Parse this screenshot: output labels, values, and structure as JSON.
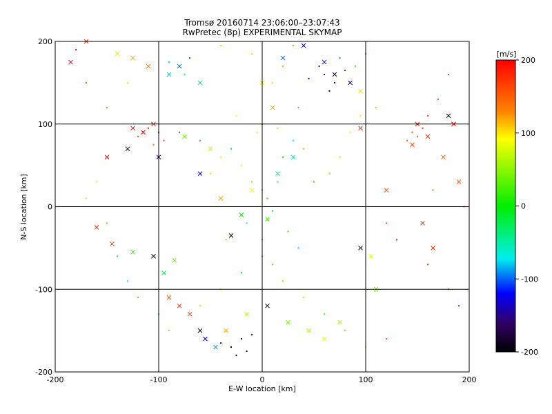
{
  "chart_data": {
    "type": "scatter",
    "title": "Tromsø 20160714 23:06:00–23:07:43",
    "subtitle": "RwPretec (8p) EXPERIMENTAL SKYMAP",
    "xlabel": "E-W location [km]",
    "ylabel": "N-S location [km]",
    "xlim": [
      -200,
      200
    ],
    "ylim": [
      -200,
      200
    ],
    "x_ticks": [
      "-200",
      "-100",
      "0",
      "100",
      "200"
    ],
    "y_ticks": [
      "-200",
      "-100",
      "0",
      "100",
      "200"
    ],
    "grid": true,
    "colorbar": {
      "label": "[m/s]",
      "range": [
        -200,
        200
      ],
      "ticks": [
        "200",
        "100",
        "0",
        "-100",
        "-200"
      ]
    },
    "series": [
      {
        "marker": "dot",
        "points": [
          [
            0,
            20,
            20
          ],
          [
            5,
            10,
            0
          ],
          [
            -10,
            30,
            40
          ],
          [
            10,
            -5,
            -20
          ],
          [
            -5,
            0,
            60
          ],
          [
            15,
            30,
            20
          ],
          [
            -20,
            50,
            80
          ],
          [
            20,
            60,
            0
          ],
          [
            -30,
            70,
            -20
          ],
          [
            30,
            80,
            -40
          ],
          [
            -40,
            60,
            100
          ],
          [
            40,
            70,
            120
          ],
          [
            -50,
            40,
            60
          ],
          [
            50,
            30,
            140
          ],
          [
            -15,
            -20,
            -60
          ],
          [
            25,
            -30,
            20
          ],
          [
            -35,
            -40,
            40
          ],
          [
            35,
            -50,
            -80
          ],
          [
            0,
            -60,
            -40
          ],
          [
            10,
            -70,
            20
          ],
          [
            -60,
            80,
            160
          ],
          [
            -80,
            90,
            180
          ],
          [
            -110,
            95,
            190
          ],
          [
            -100,
            90,
            180
          ],
          [
            -95,
            80,
            170
          ],
          [
            -120,
            85,
            160
          ],
          [
            -105,
            75,
            150
          ],
          [
            60,
            160,
            -150
          ],
          [
            70,
            150,
            -130
          ],
          [
            55,
            170,
            -170
          ],
          [
            80,
            165,
            -110
          ],
          [
            65,
            140,
            -190
          ],
          [
            45,
            155,
            -120
          ],
          [
            75,
            180,
            -90
          ],
          [
            90,
            170,
            20
          ],
          [
            100,
            185,
            -60
          ],
          [
            -80,
            170,
            -70
          ],
          [
            -75,
            160,
            -50
          ],
          [
            -90,
            175,
            -40
          ],
          [
            -70,
            180,
            -100
          ],
          [
            150,
            85,
            160
          ],
          [
            145,
            90,
            170
          ],
          [
            140,
            80,
            150
          ],
          [
            155,
            95,
            180
          ],
          [
            -20,
            -160,
            -180
          ],
          [
            -30,
            -170,
            -200
          ],
          [
            -10,
            -155,
            -160
          ],
          [
            -25,
            -180,
            -190
          ],
          [
            -40,
            -165,
            -150
          ],
          [
            -15,
            -175,
            -200
          ],
          [
            120,
            -20,
            160
          ],
          [
            130,
            -40,
            180
          ],
          [
            160,
            -70,
            170
          ],
          [
            180,
            -100,
            160
          ],
          [
            190,
            -120,
            190
          ],
          [
            -160,
            30,
            80
          ],
          [
            -170,
            10,
            60
          ],
          [
            -150,
            -20,
            40
          ],
          [
            -140,
            -60,
            -20
          ],
          [
            -130,
            -90,
            -40
          ],
          [
            -120,
            -110,
            20
          ],
          [
            -100,
            -130,
            -60
          ],
          [
            -90,
            -150,
            40
          ],
          [
            -60,
            -120,
            60
          ],
          [
            -40,
            -100,
            80
          ],
          [
            -20,
            -80,
            0
          ],
          [
            0,
            -40,
            -20
          ],
          [
            20,
            -90,
            40
          ],
          [
            40,
            -110,
            60
          ],
          [
            60,
            -130,
            20
          ],
          [
            80,
            -150,
            40
          ],
          [
            100,
            -170,
            80
          ],
          [
            120,
            -160,
            160
          ],
          [
            -180,
            190,
            190
          ],
          [
            -170,
            150,
            160
          ],
          [
            -150,
            120,
            140
          ],
          [
            -130,
            150,
            80
          ],
          [
            180,
            160,
            180
          ],
          [
            170,
            130,
            160
          ],
          [
            160,
            110,
            170
          ],
          [
            175,
            60,
            180
          ],
          [
            165,
            20,
            140
          ],
          [
            195,
            0,
            170
          ],
          [
            110,
            120,
            120
          ],
          [
            95,
            110,
            100
          ],
          [
            85,
            90,
            80
          ],
          [
            75,
            60,
            60
          ],
          [
            65,
            40,
            40
          ],
          [
            -5,
            90,
            100
          ],
          [
            0,
            100,
            120
          ],
          [
            15,
            95,
            60
          ],
          [
            -25,
            110,
            80
          ],
          [
            35,
            120,
            140
          ],
          [
            10,
            150,
            100
          ],
          [
            20,
            170,
            120
          ],
          [
            -10,
            185,
            80
          ],
          [
            -40,
            195,
            60
          ],
          [
            30,
            195,
            20
          ]
        ]
      },
      {
        "marker": "cross",
        "points": [
          [
            -170,
            200,
            180
          ],
          [
            -185,
            175,
            200
          ],
          [
            -140,
            185,
            100
          ],
          [
            -125,
            180,
            120
          ],
          [
            -110,
            170,
            140
          ],
          [
            -90,
            160,
            -80
          ],
          [
            -80,
            170,
            -100
          ],
          [
            -60,
            150,
            -40
          ],
          [
            -125,
            95,
            190
          ],
          [
            -115,
            90,
            200
          ],
          [
            -105,
            100,
            180
          ],
          [
            -130,
            70,
            -190
          ],
          [
            -100,
            60,
            -150
          ],
          [
            -150,
            60,
            200
          ],
          [
            -160,
            -25,
            180
          ],
          [
            -145,
            -45,
            160
          ],
          [
            -125,
            -55,
            20
          ],
          [
            -105,
            -60,
            -190
          ],
          [
            -95,
            -80,
            -20
          ],
          [
            -85,
            -65,
            40
          ],
          [
            -90,
            -110,
            160
          ],
          [
            -80,
            -120,
            180
          ],
          [
            -70,
            -130,
            170
          ],
          [
            -60,
            -150,
            -200
          ],
          [
            -55,
            -160,
            -120
          ],
          [
            -45,
            -170,
            -90
          ],
          [
            -35,
            -150,
            120
          ],
          [
            -15,
            -130,
            60
          ],
          [
            5,
            -120,
            -190
          ],
          [
            25,
            -140,
            40
          ],
          [
            45,
            -150,
            60
          ],
          [
            60,
            -160,
            80
          ],
          [
            75,
            -140,
            60
          ],
          [
            95,
            -50,
            -200
          ],
          [
            105,
            -60,
            80
          ],
          [
            120,
            20,
            160
          ],
          [
            150,
            100,
            190
          ],
          [
            160,
            85,
            180
          ],
          [
            145,
            75,
            170
          ],
          [
            180,
            110,
            -200
          ],
          [
            185,
            100,
            200
          ],
          [
            175,
            60,
            140
          ],
          [
            190,
            30,
            160
          ],
          [
            155,
            -20,
            180
          ],
          [
            165,
            -50,
            170
          ],
          [
            110,
            -100,
            40
          ],
          [
            -30,
            -35,
            -200
          ],
          [
            -40,
            10,
            120
          ],
          [
            -60,
            40,
            -120
          ],
          [
            -75,
            85,
            40
          ],
          [
            -50,
            70,
            60
          ],
          [
            0,
            150,
            100
          ],
          [
            10,
            120,
            120
          ],
          [
            20,
            180,
            -100
          ],
          [
            40,
            195,
            -120
          ],
          [
            60,
            175,
            -150
          ],
          [
            70,
            160,
            -180
          ],
          [
            85,
            150,
            -160
          ],
          [
            95,
            140,
            100
          ],
          [
            30,
            60,
            -60
          ],
          [
            15,
            40,
            -40
          ],
          [
            -10,
            20,
            80
          ],
          [
            -20,
            -10,
            0
          ],
          [
            5,
            -15,
            20
          ],
          [
            95,
            95,
            180
          ]
        ]
      }
    ]
  }
}
